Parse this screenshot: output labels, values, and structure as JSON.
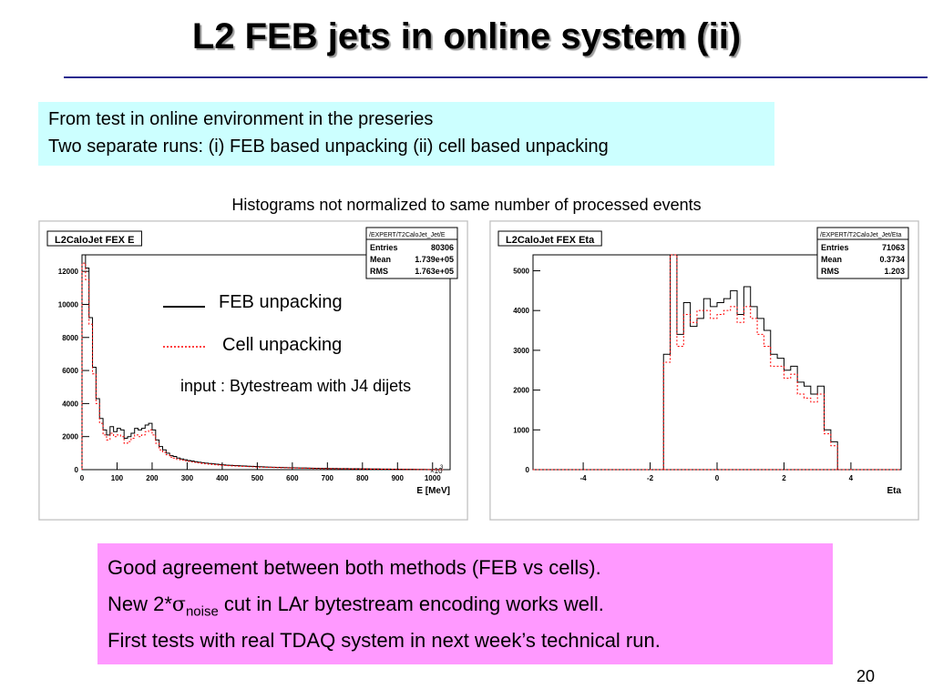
{
  "slide": {
    "title": "L2 FEB jets in online system (ii)",
    "intro_line1": "From test in online environment in the preseries",
    "intro_line2": "Two separate runs: (i) FEB based unpacking (ii) cell based unpacking",
    "note": "Histograms not normalized to same number of processed events",
    "legend_feb": "FEB unpacking",
    "legend_cell": "Cell unpacking",
    "input_note": "input : Bytestream with J4 dijets",
    "conclusion_line1": "Good agreement between both methods (FEB vs cells).",
    "conclusion_line2_pre": "New 2*",
    "conclusion_line2_sigma": "σ",
    "conclusion_line2_sub": "noise",
    "conclusion_line2_post": " cut in LAr bytestream encoding works well.",
    "conclusion_line3": "First tests with real TDAQ system in next week’s technical run.",
    "page_number": "20",
    "colors": {
      "feb_line": "#000000",
      "cell_line": "#ff0000",
      "cyan_box": "#ccffff",
      "pink_box": "#ff99ff",
      "rule": "#2b2b8f"
    }
  },
  "chart_data": [
    {
      "type": "histogram",
      "title": "L2CaloJet FEX E",
      "stats_title": "/EXPERT/T2CaloJet_Jet/E",
      "stats": [
        [
          "Entries",
          "80306"
        ],
        [
          "Mean",
          "1.739e+05"
        ],
        [
          "RMS",
          "1.763e+05"
        ]
      ],
      "xlabel": "E [MeV]",
      "x_multiplier": "×10",
      "x_multiplier_exp": "3",
      "xlim": [
        0,
        1050
      ],
      "ylim": [
        0,
        13000
      ],
      "xticks": [
        0,
        100,
        200,
        300,
        400,
        500,
        600,
        700,
        800,
        900,
        1000
      ],
      "yticks": [
        0,
        2000,
        4000,
        6000,
        8000,
        10000,
        12000
      ],
      "bin_edges_start": 0,
      "bin_width": 10,
      "series": [
        {
          "style": "solid",
          "values": [
            13000,
            12200,
            9200,
            6200,
            4300,
            3100,
            2400,
            2100,
            2600,
            2300,
            2500,
            2400,
            1900,
            2000,
            2200,
            2500,
            2400,
            2500,
            2700,
            2800,
            2400,
            1800,
            1400,
            1200,
            1000,
            850,
            800,
            700,
            650,
            600,
            550,
            520,
            480,
            450,
            420,
            390,
            370,
            350,
            330,
            310,
            290,
            270,
            260,
            250,
            240,
            230,
            220,
            210,
            200,
            190,
            180,
            170,
            160,
            150,
            145,
            140,
            135,
            130,
            125,
            120,
            115,
            110,
            105,
            100,
            95,
            90,
            85,
            80,
            78,
            75,
            72,
            70,
            68,
            65,
            62,
            60,
            58,
            55,
            52,
            50,
            48,
            45,
            42,
            40,
            38,
            36,
            34,
            32,
            30,
            28,
            26,
            24,
            22,
            20,
            18,
            16,
            14,
            12,
            10,
            8,
            6,
            4,
            2,
            1,
            0
          ]
        },
        {
          "style": "dotted",
          "values": [
            12500,
            11500,
            8800,
            5800,
            4000,
            2800,
            2100,
            1800,
            2200,
            2000,
            2100,
            2000,
            1600,
            1700,
            1900,
            2100,
            2000,
            2100,
            2300,
            2400,
            2100,
            1600,
            1200,
            1050,
            900,
            760,
            700,
            620,
            580,
            540,
            500,
            470,
            440,
            410,
            380,
            350,
            330,
            310,
            290,
            270,
            255,
            240,
            230,
            220,
            210,
            200,
            190,
            180,
            170,
            160,
            150,
            145,
            140,
            135,
            130,
            125,
            120,
            115,
            110,
            105,
            100,
            95,
            90,
            85,
            80,
            76,
            72,
            68,
            65,
            62,
            60,
            58,
            56,
            54,
            52,
            50,
            48,
            46,
            44,
            42,
            40,
            38,
            36,
            34,
            32,
            30,
            28,
            26,
            24,
            22,
            20,
            18,
            16,
            14,
            12,
            10,
            8,
            6,
            4,
            2,
            1,
            0,
            0
          ]
        }
      ]
    },
    {
      "type": "histogram",
      "title": "L2CaloJet FEX Eta",
      "stats_title": "/EXPERT/T2CaloJet_Jet/Eta",
      "stats": [
        [
          "Entries",
          "71063"
        ],
        [
          "Mean",
          "0.3734"
        ],
        [
          "RMS",
          "1.203"
        ]
      ],
      "xlabel": "Eta",
      "xlim": [
        -5.5,
        5.5
      ],
      "ylim": [
        0,
        5400
      ],
      "xticks": [
        -4,
        -2,
        0,
        2,
        4
      ],
      "yticks": [
        0,
        1000,
        2000,
        3000,
        4000,
        5000
      ],
      "bin_edges_start": -1.6,
      "bin_width": 0.2,
      "series": [
        {
          "style": "solid",
          "values": [
            2900,
            5400,
            3400,
            4200,
            3600,
            3800,
            4300,
            4100,
            4200,
            4300,
            4500,
            3900,
            4600,
            4100,
            3800,
            3500,
            2900,
            2800,
            2500,
            2600,
            2200,
            2100,
            1900,
            2100,
            1000,
            700,
            0
          ]
        },
        {
          "style": "dotted",
          "values": [
            2700,
            5400,
            3100,
            3900,
            3700,
            4000,
            4000,
            3800,
            3900,
            4000,
            4100,
            3700,
            4100,
            3800,
            3400,
            3100,
            2600,
            2600,
            2300,
            2400,
            1900,
            1800,
            1700,
            1900,
            900,
            600,
            0
          ]
        }
      ]
    }
  ]
}
